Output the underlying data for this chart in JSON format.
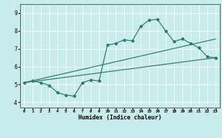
{
  "title": "",
  "xlabel": "Humidex (Indice chaleur)",
  "xlim": [
    -0.5,
    23.5
  ],
  "ylim": [
    3.7,
    9.5
  ],
  "yticks": [
    4,
    5,
    6,
    7,
    8,
    9
  ],
  "xticks": [
    0,
    1,
    2,
    3,
    4,
    5,
    6,
    7,
    8,
    9,
    10,
    11,
    12,
    13,
    14,
    15,
    16,
    17,
    18,
    19,
    20,
    21,
    22,
    23
  ],
  "bg_color": "#c8ecec",
  "line_color": "#2d7a6e",
  "curve1_x": [
    0,
    1,
    2,
    3,
    4,
    5,
    6,
    7,
    8,
    9,
    10,
    11,
    12,
    13,
    14,
    15,
    16,
    17,
    18,
    19,
    20,
    21,
    22,
    23
  ],
  "curve1_y": [
    5.1,
    5.2,
    5.1,
    4.95,
    4.55,
    4.4,
    4.35,
    5.1,
    5.25,
    5.2,
    7.2,
    7.3,
    7.5,
    7.45,
    8.25,
    8.6,
    8.65,
    8.0,
    7.4,
    7.55,
    7.3,
    7.05,
    6.55,
    6.5
  ],
  "line1_x": [
    0,
    23
  ],
  "line1_y": [
    5.1,
    6.5
  ],
  "line2_x": [
    0,
    23
  ],
  "line2_y": [
    5.1,
    7.55
  ]
}
